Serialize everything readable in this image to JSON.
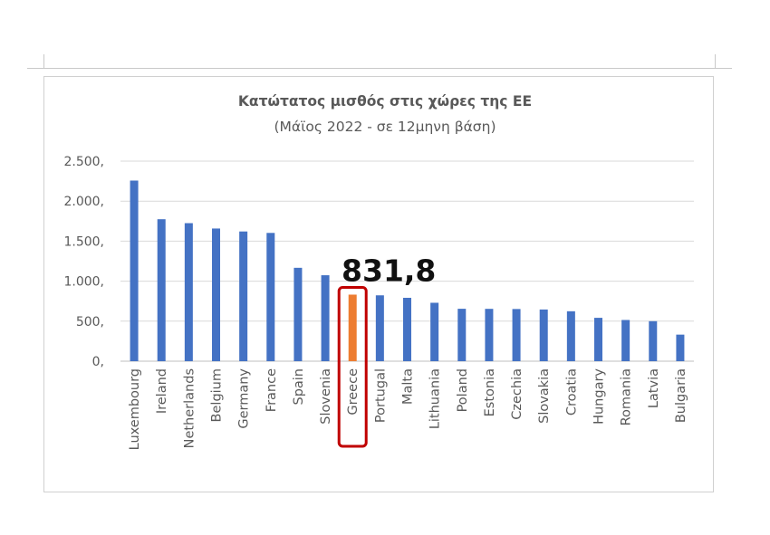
{
  "chart_data": {
    "type": "bar",
    "title": "Κατώτατος μισθός στις χώρες της ΕΕ",
    "subtitle": "(Μάϊος 2022 - σε 12μηνη βάση)",
    "categories": [
      "Luxembourg",
      "Ireland",
      "Netherlands",
      "Belgium",
      "Germany",
      "France",
      "Spain",
      "Slovenia",
      "Greece",
      "Portugal",
      "Malta",
      "Lithuania",
      "Poland",
      "Estonia",
      "Czechia",
      "Slovakia",
      "Croatia",
      "Hungary",
      "Romania",
      "Latvia",
      "Bulgaria"
    ],
    "values": [
      2257,
      1774,
      1725,
      1658,
      1621,
      1603,
      1167,
      1074,
      831.8,
      823,
      792,
      730,
      655,
      654,
      652,
      646,
      624,
      542,
      515,
      500,
      332
    ],
    "ylim": [
      0,
      2500
    ],
    "yticks": [
      0,
      500,
      1000,
      1500,
      2000,
      2500
    ],
    "ytick_labels": [
      "0,",
      "500,",
      "1.000,",
      "1.500,",
      "2.000,",
      "2.500,"
    ],
    "grid": true,
    "legend": "none",
    "bar_color": "#4472C4",
    "highlight": {
      "category": "Greece",
      "color": "#ED7D31",
      "box_color": "#C00000",
      "label": "831,8"
    }
  }
}
